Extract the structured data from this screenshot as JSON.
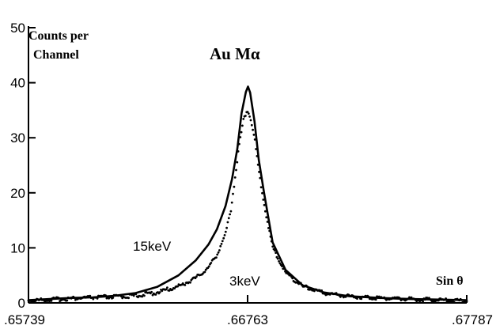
{
  "chart_data": {
    "type": "line",
    "title": "Au Mα",
    "ylabel_line1": "Counts per",
    "ylabel_line2": "Channel",
    "xlabel": "Sin θ",
    "xlim": [
      0.65739,
      0.67787
    ],
    "ylim": [
      0,
      50
    ],
    "grid": false,
    "legend": "none",
    "x_ticks": [
      {
        "value": 0.65739,
        "label": ".65739"
      },
      {
        "value": 0.66763,
        "label": ".66763"
      },
      {
        "value": 0.67787,
        "label": ".67787"
      }
    ],
    "y_ticks": [
      {
        "value": 0,
        "label": "0"
      },
      {
        "value": 10,
        "label": "10"
      },
      {
        "value": 20,
        "label": "20"
      },
      {
        "value": 30,
        "label": "30"
      },
      {
        "value": 40,
        "label": "40"
      },
      {
        "value": 50,
        "label": "50"
      }
    ],
    "series": [
      {
        "name": "15keV",
        "style": "solid",
        "x": [
          0.65739,
          0.6584,
          0.6594,
          0.6604,
          0.6614,
          0.6624,
          0.6634,
          0.6644,
          0.6652,
          0.6658,
          0.6662,
          0.6666,
          0.6669,
          0.66715,
          0.66735,
          0.66755,
          0.66765,
          0.66775,
          0.66795,
          0.66815,
          0.6684,
          0.6688,
          0.6694,
          0.6702,
          0.6712,
          0.6724,
          0.6738,
          0.6752,
          0.6766,
          0.67787
        ],
        "values": [
          0.5,
          0.7,
          0.9,
          1.0,
          1.3,
          1.8,
          2.9,
          5.0,
          7.7,
          10.6,
          13.4,
          17.6,
          22.5,
          28.0,
          34.5,
          38.3,
          39.3,
          38.2,
          33.0,
          26.0,
          20.0,
          11.0,
          6.0,
          3.2,
          1.9,
          1.2,
          0.9,
          0.7,
          0.6,
          0.5
        ]
      },
      {
        "name": "3keV",
        "style": "dotted",
        "x": [
          0.65739,
          0.6584,
          0.6594,
          0.6604,
          0.6614,
          0.6624,
          0.6634,
          0.6644,
          0.6652,
          0.6658,
          0.6662,
          0.6666,
          0.66685,
          0.66705,
          0.66725,
          0.66745,
          0.6676,
          0.66775,
          0.66795,
          0.66815,
          0.6684,
          0.6688,
          0.6694,
          0.6702,
          0.6712,
          0.6724,
          0.6738,
          0.6752,
          0.6766,
          0.67787
        ],
        "values": [
          0.4,
          0.6,
          0.8,
          1.0,
          1.1,
          1.3,
          1.9,
          3.0,
          4.5,
          6.4,
          8.8,
          12.5,
          17.0,
          23.0,
          29.0,
          33.5,
          35.0,
          34.0,
          30.0,
          24.0,
          18.0,
          10.0,
          5.5,
          3.0,
          1.8,
          1.2,
          0.9,
          0.7,
          0.5,
          0.4
        ]
      }
    ]
  }
}
